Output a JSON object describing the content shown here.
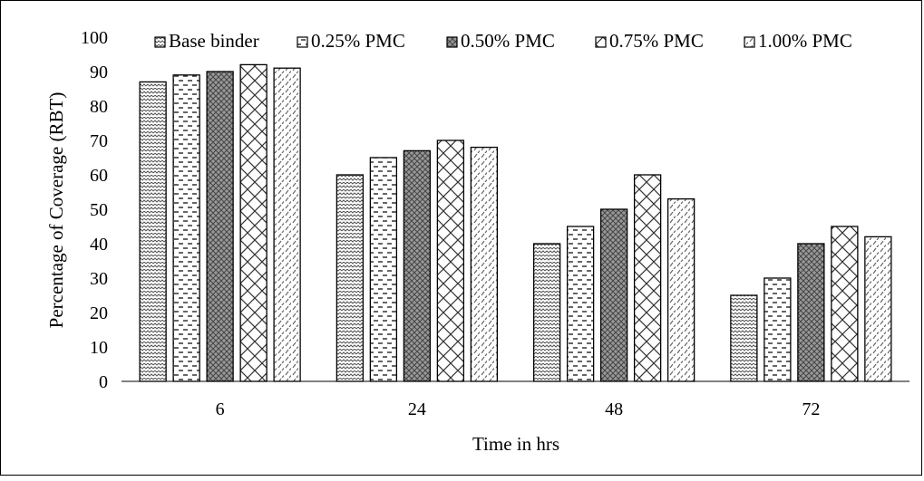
{
  "chart_data": {
    "type": "bar",
    "categories": [
      "6",
      "24",
      "48",
      "72"
    ],
    "series": [
      {
        "name": "Base binder",
        "values": [
          87,
          60,
          40,
          25
        ]
      },
      {
        "name": "0.25% PMC",
        "values": [
          89,
          65,
          45,
          30
        ]
      },
      {
        "name": "0.50% PMC",
        "values": [
          90,
          67,
          50,
          40
        ]
      },
      {
        "name": "0.75% PMC",
        "values": [
          92,
          70,
          60,
          45
        ]
      },
      {
        "name": "1.00% PMC",
        "values": [
          91,
          68,
          53,
          42
        ]
      }
    ],
    "yticks": [
      "0",
      "10",
      "20",
      "30",
      "40",
      "50",
      "60",
      "70",
      "80",
      "90",
      "100"
    ],
    "ylim": [
      0,
      100
    ],
    "xlabel": "Time in hrs",
    "ylabel": "Percentage of Coverage (RBT)",
    "grid": false,
    "legend_position": "top",
    "colors": {
      "bar_outline": "#000000",
      "pattern": "#555555"
    }
  }
}
